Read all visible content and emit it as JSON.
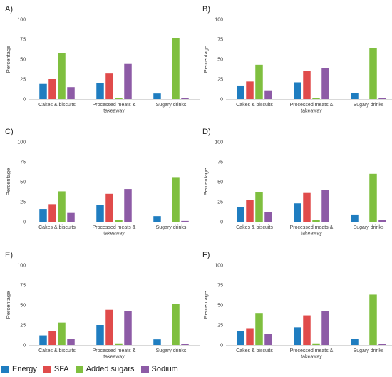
{
  "colors": {
    "energy": "#1f7dc0",
    "sfa": "#e04b4b",
    "added_sugars": "#7fbf3f",
    "sodium": "#8d5ba6"
  },
  "legend": [
    {
      "name": "Energy",
      "color_key": "energy"
    },
    {
      "name": "SFA",
      "color_key": "sfa"
    },
    {
      "name": "Added sugars",
      "color_key": "added_sugars"
    },
    {
      "name": "Sodium",
      "color_key": "sodium"
    }
  ],
  "chart_data": [
    {
      "type": "bar",
      "panel": "A)",
      "ylabel": "Percentage",
      "ylim": [
        0,
        100
      ],
      "yticks": [
        0,
        25,
        50,
        75,
        100
      ],
      "grid": false,
      "legend_position": "bottom",
      "categories": [
        "Cakes & biscuits",
        "Processed meats & takeaway",
        "Sugary drinks"
      ],
      "series": [
        {
          "name": "Energy",
          "values": [
            19,
            20,
            7
          ]
        },
        {
          "name": "SFA",
          "values": [
            25,
            32,
            0
          ]
        },
        {
          "name": "Added sugars",
          "values": [
            58,
            1,
            76
          ]
        },
        {
          "name": "Sodium",
          "values": [
            15,
            44,
            1
          ]
        }
      ]
    },
    {
      "type": "bar",
      "panel": "B)",
      "ylabel": "Percentage",
      "ylim": [
        0,
        100
      ],
      "yticks": [
        0,
        25,
        50,
        75,
        100
      ],
      "grid": false,
      "legend_position": "bottom",
      "categories": [
        "Cakes & biscuits",
        "Processed meats & takeaway",
        "Sugary drinks"
      ],
      "series": [
        {
          "name": "Energy",
          "values": [
            17,
            21,
            8
          ]
        },
        {
          "name": "SFA",
          "values": [
            22,
            35,
            0
          ]
        },
        {
          "name": "Added sugars",
          "values": [
            43,
            1,
            64
          ]
        },
        {
          "name": "Sodium",
          "values": [
            11,
            39,
            1
          ]
        }
      ]
    },
    {
      "type": "bar",
      "panel": "C)",
      "ylabel": "Percentage",
      "ylim": [
        0,
        100
      ],
      "yticks": [
        0,
        25,
        50,
        75,
        100
      ],
      "grid": false,
      "legend_position": "bottom",
      "categories": [
        "Cakes & biscuits",
        "Processed meats & takeaway",
        "Sugary drinks"
      ],
      "series": [
        {
          "name": "Energy",
          "values": [
            16,
            21,
            7
          ]
        },
        {
          "name": "SFA",
          "values": [
            22,
            35,
            0
          ]
        },
        {
          "name": "Added sugars",
          "values": [
            38,
            2,
            55
          ]
        },
        {
          "name": "Sodium",
          "values": [
            11,
            41,
            1
          ]
        }
      ]
    },
    {
      "type": "bar",
      "panel": "D)",
      "ylabel": "Percentage",
      "ylim": [
        0,
        100
      ],
      "yticks": [
        0,
        25,
        50,
        75,
        100
      ],
      "grid": false,
      "legend_position": "bottom",
      "categories": [
        "Cakes & biscuits",
        "Processed meats & takeaway",
        "Sugary drinks"
      ],
      "series": [
        {
          "name": "Energy",
          "values": [
            18,
            23,
            9
          ]
        },
        {
          "name": "SFA",
          "values": [
            27,
            36,
            0
          ]
        },
        {
          "name": "Added sugars",
          "values": [
            37,
            2,
            60
          ]
        },
        {
          "name": "Sodium",
          "values": [
            12,
            40,
            2
          ]
        }
      ]
    },
    {
      "type": "bar",
      "panel": "E)",
      "ylabel": "Percentage",
      "ylim": [
        0,
        100
      ],
      "yticks": [
        0,
        25,
        50,
        75,
        100
      ],
      "grid": false,
      "legend_position": "bottom",
      "categories": [
        "Cakes & biscuits",
        "Processed meats & takeaway",
        "Sugary drinks"
      ],
      "series": [
        {
          "name": "Energy",
          "values": [
            12,
            25,
            7
          ]
        },
        {
          "name": "SFA",
          "values": [
            17,
            44,
            0
          ]
        },
        {
          "name": "Added sugars",
          "values": [
            28,
            2,
            51
          ]
        },
        {
          "name": "Sodium",
          "values": [
            8,
            42,
            1
          ]
        }
      ]
    },
    {
      "type": "bar",
      "panel": "F)",
      "ylabel": "Percentage",
      "ylim": [
        0,
        100
      ],
      "yticks": [
        0,
        25,
        50,
        75,
        100
      ],
      "grid": false,
      "legend_position": "bottom",
      "categories": [
        "Cakes & biscuits",
        "Processed meats & takeaway",
        "Sugary drinks"
      ],
      "series": [
        {
          "name": "Energy",
          "values": [
            17,
            22,
            8
          ]
        },
        {
          "name": "SFA",
          "values": [
            21,
            37,
            0
          ]
        },
        {
          "name": "Added sugars",
          "values": [
            40,
            2,
            63
          ]
        },
        {
          "name": "Sodium",
          "values": [
            14,
            42,
            1
          ]
        }
      ]
    }
  ]
}
